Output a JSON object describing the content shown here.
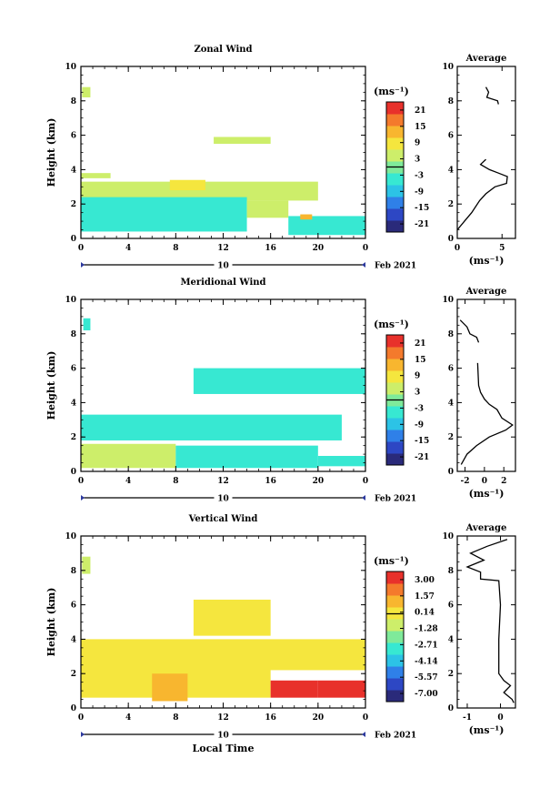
{
  "chart_data": [
    {
      "type": "heatmap",
      "title": "Zonal Wind",
      "ylabel": "Height (km)",
      "ylim": [
        0,
        10
      ],
      "yticks": [
        "0",
        "2",
        "4",
        "6",
        "8",
        "10"
      ],
      "xlim": [
        0,
        24
      ],
      "xticks": [
        "0",
        "4",
        "8",
        "12",
        "16",
        "20",
        "0"
      ],
      "date_bar": {
        "day": "10",
        "label": "Feb 2021"
      },
      "colorbar": {
        "unit": "(ms⁻¹)",
        "ticks": [
          "21",
          "15",
          "9",
          "3",
          "-3",
          "-9",
          "-15",
          "-21"
        ]
      },
      "regions": [
        {
          "x": [
            0.1,
            0.8
          ],
          "y": [
            8.2,
            8.8
          ],
          "value": 6
        },
        {
          "x": [
            0,
            20
          ],
          "y": [
            2.2,
            3.3
          ],
          "value": 5
        },
        {
          "x": [
            7.5,
            10.5
          ],
          "y": [
            2.8,
            3.4
          ],
          "value": 9
        },
        {
          "x": [
            0,
            2.5
          ],
          "y": [
            3.5,
            3.8
          ],
          "value": 4
        },
        {
          "x": [
            0,
            14
          ],
          "y": [
            0.4,
            2.4
          ],
          "value": -4
        },
        {
          "x": [
            14,
            17.5
          ],
          "y": [
            1.2,
            2.2
          ],
          "value": 3
        },
        {
          "x": [
            17.5,
            24
          ],
          "y": [
            0.2,
            1.3
          ],
          "value": -5
        },
        {
          "x": [
            11.2,
            16
          ],
          "y": [
            5.5,
            5.9
          ],
          "value": 5
        },
        {
          "x": [
            18.5,
            19.5
          ],
          "y": [
            1.1,
            1.4
          ],
          "value": 14
        }
      ],
      "average": {
        "title": "Average",
        "xlabel": "(ms⁻¹)",
        "xticks": [
          "0",
          "5"
        ],
        "xlim": [
          0,
          6.5
        ],
        "ylim": [
          0,
          10
        ],
        "yticks": [
          "0",
          "2",
          "4",
          "6",
          "8",
          "10"
        ],
        "segments": [
          [
            [
              3.2,
              8.8
            ],
            [
              3.5,
              8.5
            ],
            [
              3.3,
              8.2
            ],
            [
              4.5,
              8.0
            ],
            [
              4.6,
              7.8
            ]
          ],
          [
            [
              0,
              0.5
            ],
            [
              0.8,
              1.0
            ],
            [
              1.6,
              1.5
            ],
            [
              2.5,
              2.2
            ],
            [
              3.2,
              2.6
            ],
            [
              4.2,
              3.0
            ],
            [
              5.5,
              3.2
            ],
            [
              5.6,
              3.6
            ],
            [
              4.6,
              3.8
            ],
            [
              3.6,
              4.0
            ],
            [
              2.6,
              4.3
            ],
            [
              3.2,
              4.6
            ]
          ]
        ]
      }
    },
    {
      "type": "heatmap",
      "title": "Meridional Wind",
      "ylabel": "Height (km)",
      "ylim": [
        0,
        10
      ],
      "yticks": [
        "0",
        "2",
        "4",
        "6",
        "8",
        "10"
      ],
      "xlim": [
        0,
        24
      ],
      "xticks": [
        "0",
        "4",
        "8",
        "12",
        "16",
        "20",
        "0"
      ],
      "date_bar": {
        "day": "10",
        "label": "Feb 2021"
      },
      "colorbar": {
        "unit": "(ms⁻¹)",
        "ticks": [
          "21",
          "15",
          "9",
          "3",
          "-3",
          "-9",
          "-15",
          "-21"
        ]
      },
      "regions": [
        {
          "x": [
            0.2,
            0.8
          ],
          "y": [
            8.2,
            8.9
          ],
          "value": -5
        },
        {
          "x": [
            9.5,
            24
          ],
          "y": [
            4.5,
            6.0
          ],
          "value": -4
        },
        {
          "x": [
            0,
            22
          ],
          "y": [
            1.8,
            3.3
          ],
          "value": -5
        },
        {
          "x": [
            0,
            8
          ],
          "y": [
            0.2,
            1.6
          ],
          "value": 4
        },
        {
          "x": [
            8,
            20
          ],
          "y": [
            0.2,
            1.5
          ],
          "value": -5
        },
        {
          "x": [
            20,
            24
          ],
          "y": [
            0.3,
            0.9
          ],
          "value": -5
        }
      ],
      "average": {
        "title": "Average",
        "xlabel": "(ms⁻¹)",
        "xticks": [
          "-2",
          "0",
          "2"
        ],
        "xlim": [
          -2.8,
          3.2
        ],
        "ylim": [
          0,
          10
        ],
        "yticks": [
          "0",
          "2",
          "4",
          "6",
          "8",
          "10"
        ],
        "segments": [
          [
            [
              -2.5,
              8.8
            ],
            [
              -1.8,
              8.4
            ],
            [
              -1.5,
              8.0
            ],
            [
              -0.8,
              7.8
            ],
            [
              -0.6,
              7.5
            ]
          ],
          [
            [
              -2.4,
              0.4
            ],
            [
              -1.8,
              1.0
            ],
            [
              -0.8,
              1.5
            ],
            [
              0.5,
              2.0
            ],
            [
              2.2,
              2.4
            ],
            [
              2.9,
              2.7
            ],
            [
              1.8,
              3.1
            ],
            [
              1.3,
              3.6
            ],
            [
              0.5,
              3.9
            ],
            [
              0,
              4.2
            ],
            [
              -0.4,
              4.6
            ],
            [
              -0.6,
              5.0
            ],
            [
              -0.7,
              6.3
            ]
          ]
        ]
      }
    },
    {
      "type": "heatmap",
      "title": "Vertical Wind",
      "ylabel": "Height (km)",
      "xlabel": "Local Time",
      "ylim": [
        0,
        10
      ],
      "yticks": [
        "0",
        "2",
        "4",
        "6",
        "8",
        "10"
      ],
      "xlim": [
        0,
        24
      ],
      "xticks": [
        "0",
        "4",
        "8",
        "12",
        "16",
        "20",
        "0"
      ],
      "date_bar": {
        "day": "10",
        "label": "Feb 2021"
      },
      "colorbar": {
        "unit": "(ms⁻¹)",
        "ticks": [
          "3.00",
          "1.57",
          "0.14",
          "-1.28",
          "-2.71",
          "-4.14",
          "-5.57",
          "-7.00"
        ]
      },
      "regions": [
        {
          "x": [
            0.1,
            0.8
          ],
          "y": [
            7.8,
            8.8
          ],
          "value": -0.6
        },
        {
          "x": [
            9.5,
            16
          ],
          "y": [
            4.2,
            6.3
          ],
          "value": 0.14
        },
        {
          "x": [
            0,
            24
          ],
          "y": [
            2.2,
            4.0
          ],
          "value": 0.14
        },
        {
          "x": [
            0,
            16
          ],
          "y": [
            0.6,
            2.8
          ],
          "value": 0.14
        },
        {
          "x": [
            6,
            9
          ],
          "y": [
            0.4,
            2.0
          ],
          "value": 1.6
        },
        {
          "x": [
            16,
            20
          ],
          "y": [
            0.6,
            1.6
          ],
          "value": 3.0
        },
        {
          "x": [
            20,
            24
          ],
          "y": [
            0.6,
            1.6
          ],
          "value": 3.0
        }
      ],
      "average": {
        "title": "Average",
        "xlabel": "(ms⁻¹)",
        "xticks": [
          "-1",
          "0"
        ],
        "xlim": [
          -1.3,
          0.45
        ],
        "ylim": [
          0,
          10
        ],
        "yticks": [
          "0",
          "2",
          "4",
          "6",
          "8",
          "10"
        ],
        "segments": [
          [
            [
              0.2,
              9.8
            ],
            [
              -0.4,
              9.4
            ],
            [
              -0.9,
              9.0
            ],
            [
              -0.5,
              8.6
            ],
            [
              -1.0,
              8.2
            ],
            [
              -0.6,
              7.9
            ],
            [
              -0.6,
              7.5
            ],
            [
              -0.05,
              7.4
            ],
            [
              0,
              6.0
            ],
            [
              -0.05,
              4.0
            ],
            [
              -0.05,
              2.0
            ],
            [
              0.1,
              1.6
            ],
            [
              0.3,
              1.3
            ],
            [
              0.1,
              0.9
            ],
            [
              0.35,
              0.5
            ],
            [
              0.4,
              0.3
            ]
          ]
        ]
      }
    }
  ]
}
